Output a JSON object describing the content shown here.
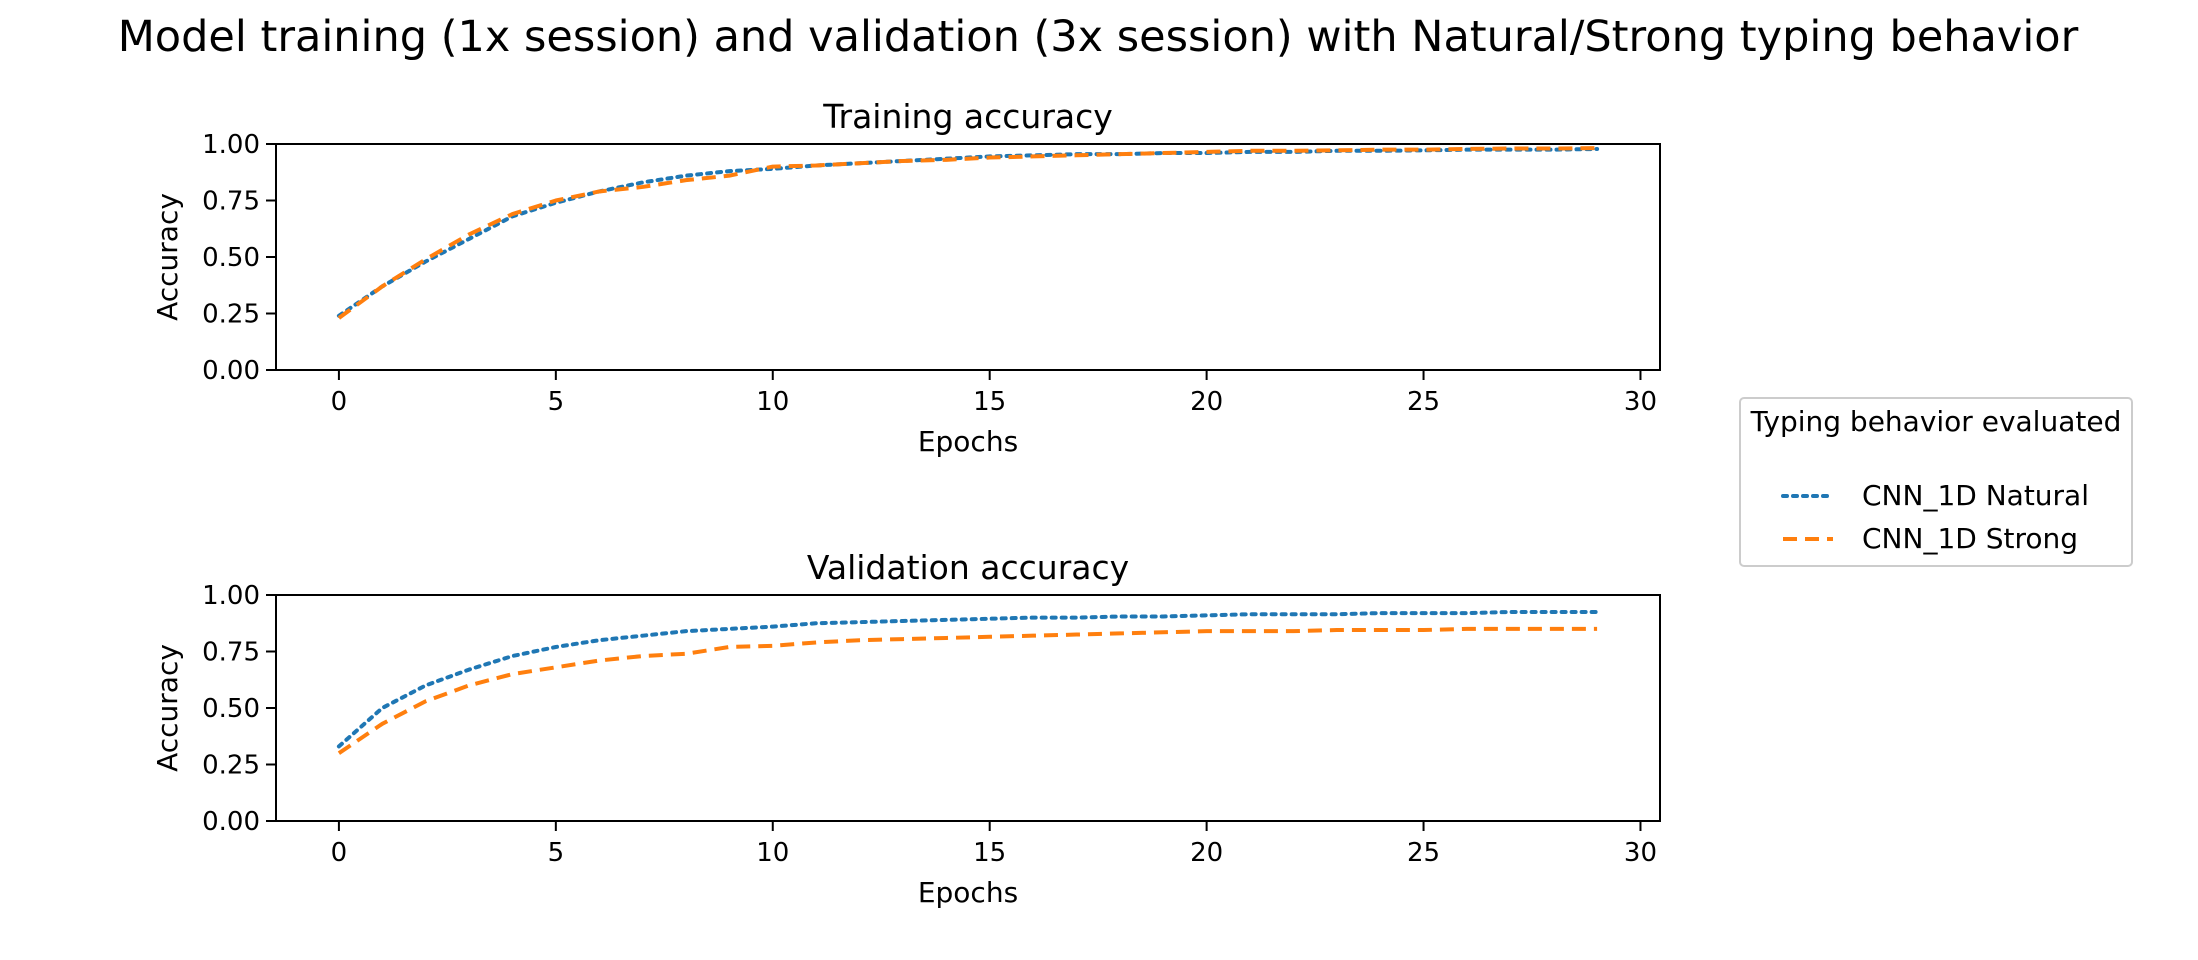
{
  "figure": {
    "title": "Model training (1x session) and validation (3x session) with Natural/Strong typing behavior"
  },
  "legend": {
    "title": "Typing behavior evaluated",
    "items": [
      {
        "label": "CNN_1D Natural",
        "color": "#1f77b4",
        "style": "dotted"
      },
      {
        "label": "CNN_1D Strong",
        "color": "#ff7f0e",
        "style": "dashed"
      }
    ],
    "placement": "right"
  },
  "chart_data": [
    {
      "type": "line",
      "title": "Training accuracy",
      "xlabel": "Epochs",
      "ylabel": "Accuracy",
      "xlim": [
        -1.45,
        30.45
      ],
      "ylim": [
        0,
        1
      ],
      "xticks": [
        0,
        5,
        10,
        15,
        20,
        25,
        30
      ],
      "xtick_labels": [
        "0",
        "5",
        "10",
        "15",
        "20",
        "25",
        "30"
      ],
      "yticks": [
        0,
        0.25,
        0.5,
        0.75,
        1.0
      ],
      "ytick_labels": [
        "0.00",
        "0.25",
        "0.50",
        "0.75",
        "1.00"
      ],
      "grid": false,
      "x": [
        0,
        1,
        2,
        3,
        4,
        5,
        6,
        7,
        8,
        9,
        10,
        11,
        12,
        13,
        14,
        15,
        16,
        17,
        18,
        19,
        20,
        21,
        22,
        23,
        24,
        25,
        26,
        27,
        28,
        29
      ],
      "series": [
        {
          "name": "CNN_1D Natural",
          "color": "#1f77b4",
          "style": "dotted",
          "values": [
            0.24,
            0.37,
            0.48,
            0.58,
            0.68,
            0.74,
            0.79,
            0.83,
            0.86,
            0.88,
            0.89,
            0.905,
            0.915,
            0.925,
            0.935,
            0.945,
            0.95,
            0.955,
            0.955,
            0.96,
            0.96,
            0.965,
            0.965,
            0.97,
            0.97,
            0.972,
            0.975,
            0.975,
            0.975,
            0.978
          ]
        },
        {
          "name": "CNN_1D Strong",
          "color": "#ff7f0e",
          "style": "dashed",
          "values": [
            0.23,
            0.37,
            0.49,
            0.6,
            0.69,
            0.75,
            0.79,
            0.81,
            0.84,
            0.86,
            0.9,
            0.905,
            0.915,
            0.925,
            0.93,
            0.94,
            0.945,
            0.95,
            0.955,
            0.96,
            0.965,
            0.97,
            0.97,
            0.972,
            0.975,
            0.975,
            0.978,
            0.98,
            0.98,
            0.982
          ]
        }
      ]
    },
    {
      "type": "line",
      "title": "Validation accuracy",
      "xlabel": "Epochs",
      "ylabel": "Accuracy",
      "xlim": [
        -1.45,
        30.45
      ],
      "ylim": [
        0,
        1
      ],
      "xticks": [
        0,
        5,
        10,
        15,
        20,
        25,
        30
      ],
      "xtick_labels": [
        "0",
        "5",
        "10",
        "15",
        "20",
        "25",
        "30"
      ],
      "yticks": [
        0,
        0.25,
        0.5,
        0.75,
        1.0
      ],
      "ytick_labels": [
        "0.00",
        "0.25",
        "0.50",
        "0.75",
        "1.00"
      ],
      "grid": false,
      "x": [
        0,
        1,
        2,
        3,
        4,
        5,
        6,
        7,
        8,
        9,
        10,
        11,
        12,
        13,
        14,
        15,
        16,
        17,
        18,
        19,
        20,
        21,
        22,
        23,
        24,
        25,
        26,
        27,
        28,
        29
      ],
      "series": [
        {
          "name": "CNN_1D Natural",
          "color": "#1f77b4",
          "style": "dotted",
          "values": [
            0.33,
            0.5,
            0.6,
            0.67,
            0.73,
            0.77,
            0.8,
            0.82,
            0.84,
            0.85,
            0.86,
            0.875,
            0.88,
            0.885,
            0.89,
            0.895,
            0.9,
            0.9,
            0.905,
            0.905,
            0.91,
            0.915,
            0.915,
            0.915,
            0.92,
            0.92,
            0.92,
            0.925,
            0.925,
            0.925
          ]
        },
        {
          "name": "CNN_1D Strong",
          "color": "#ff7f0e",
          "style": "dashed",
          "values": [
            0.3,
            0.43,
            0.53,
            0.6,
            0.65,
            0.68,
            0.71,
            0.73,
            0.74,
            0.77,
            0.775,
            0.79,
            0.8,
            0.805,
            0.81,
            0.815,
            0.82,
            0.825,
            0.83,
            0.835,
            0.84,
            0.84,
            0.84,
            0.845,
            0.845,
            0.845,
            0.85,
            0.85,
            0.85,
            0.85
          ]
        }
      ]
    }
  ]
}
